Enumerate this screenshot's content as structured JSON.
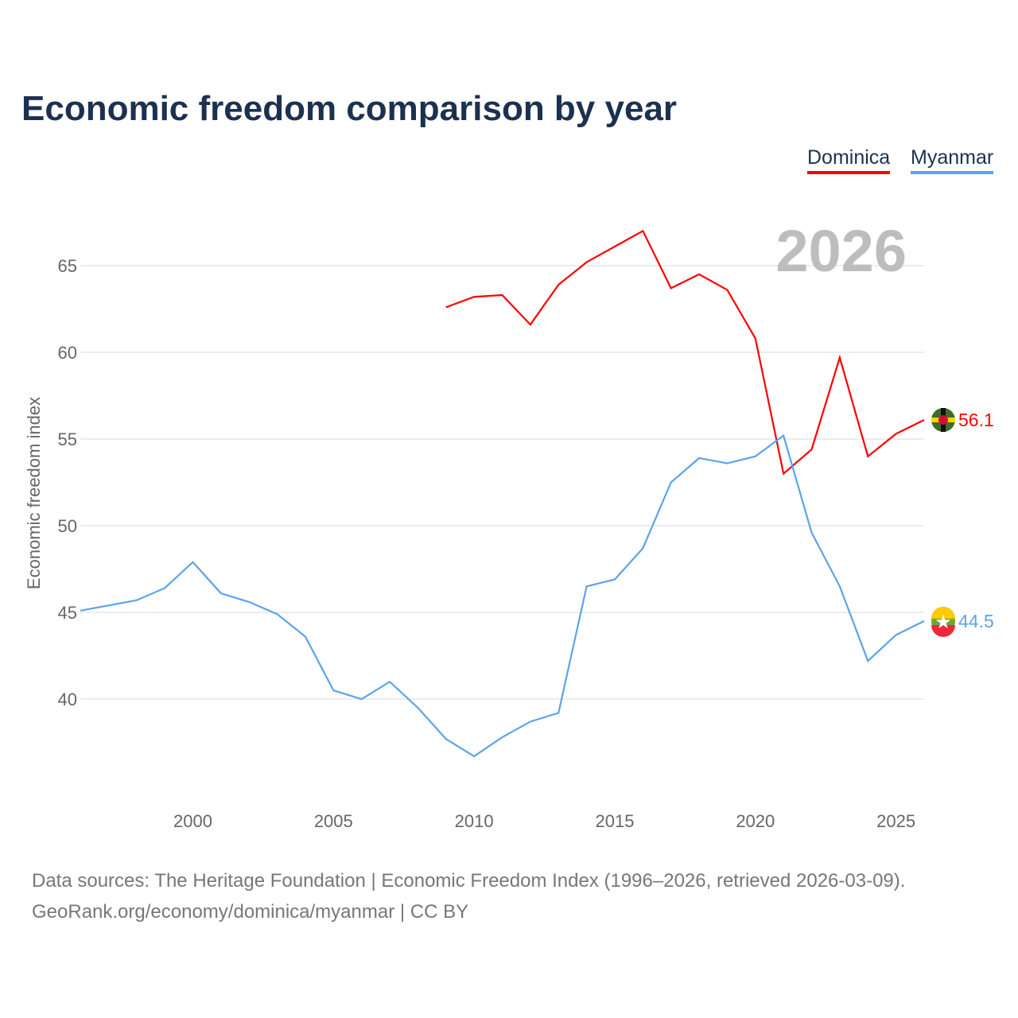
{
  "chart_data": {
    "type": "line",
    "title": "Economic freedom comparison by year",
    "ylabel": "Economic freedom index",
    "xlabel": "",
    "xlim": [
      1996,
      2026
    ],
    "ylim": [
      35,
      68
    ],
    "xticks": [
      2000,
      2005,
      2010,
      2015,
      2020,
      2025
    ],
    "yticks": [
      40,
      45,
      50,
      55,
      60,
      65
    ],
    "grid": true,
    "legend_placement": "top-right",
    "year_watermark": "2026",
    "series": [
      {
        "name": "Dominica",
        "color": "#ff0000",
        "end_label": "56.1",
        "x": [
          2009,
          2010,
          2011,
          2012,
          2013,
          2014,
          2015,
          2016,
          2017,
          2018,
          2019,
          2020,
          2021,
          2022,
          2023,
          2024,
          2025,
          2026
        ],
        "values": [
          62.6,
          63.2,
          63.3,
          61.6,
          63.9,
          65.2,
          66.1,
          67.0,
          63.7,
          64.5,
          63.6,
          60.8,
          53.0,
          54.4,
          59.7,
          54.0,
          55.3,
          56.1
        ]
      },
      {
        "name": "Myanmar",
        "color": "#5ba4ea",
        "end_label": "44.5",
        "x": [
          1996,
          1997,
          1998,
          1999,
          2000,
          2001,
          2002,
          2003,
          2004,
          2005,
          2006,
          2007,
          2008,
          2009,
          2010,
          2011,
          2012,
          2013,
          2014,
          2015,
          2016,
          2017,
          2018,
          2019,
          2020,
          2021,
          2022,
          2023,
          2024,
          2025,
          2026
        ],
        "values": [
          45.1,
          45.4,
          45.7,
          46.4,
          47.9,
          46.1,
          45.6,
          44.9,
          43.6,
          40.5,
          40.0,
          41.0,
          39.5,
          37.7,
          36.7,
          37.8,
          38.7,
          39.2,
          46.5,
          46.9,
          48.7,
          52.5,
          53.9,
          53.6,
          54.0,
          55.2,
          49.6,
          46.5,
          42.2,
          43.7,
          44.5
        ]
      }
    ]
  },
  "source_line1": "Data sources: The Heritage Foundation | Economic Freedom Index (1996–2026, retrieved 2026-03-09).",
  "source_line2": "GeoRank.org/economy/dominica/myanmar | CC BY"
}
